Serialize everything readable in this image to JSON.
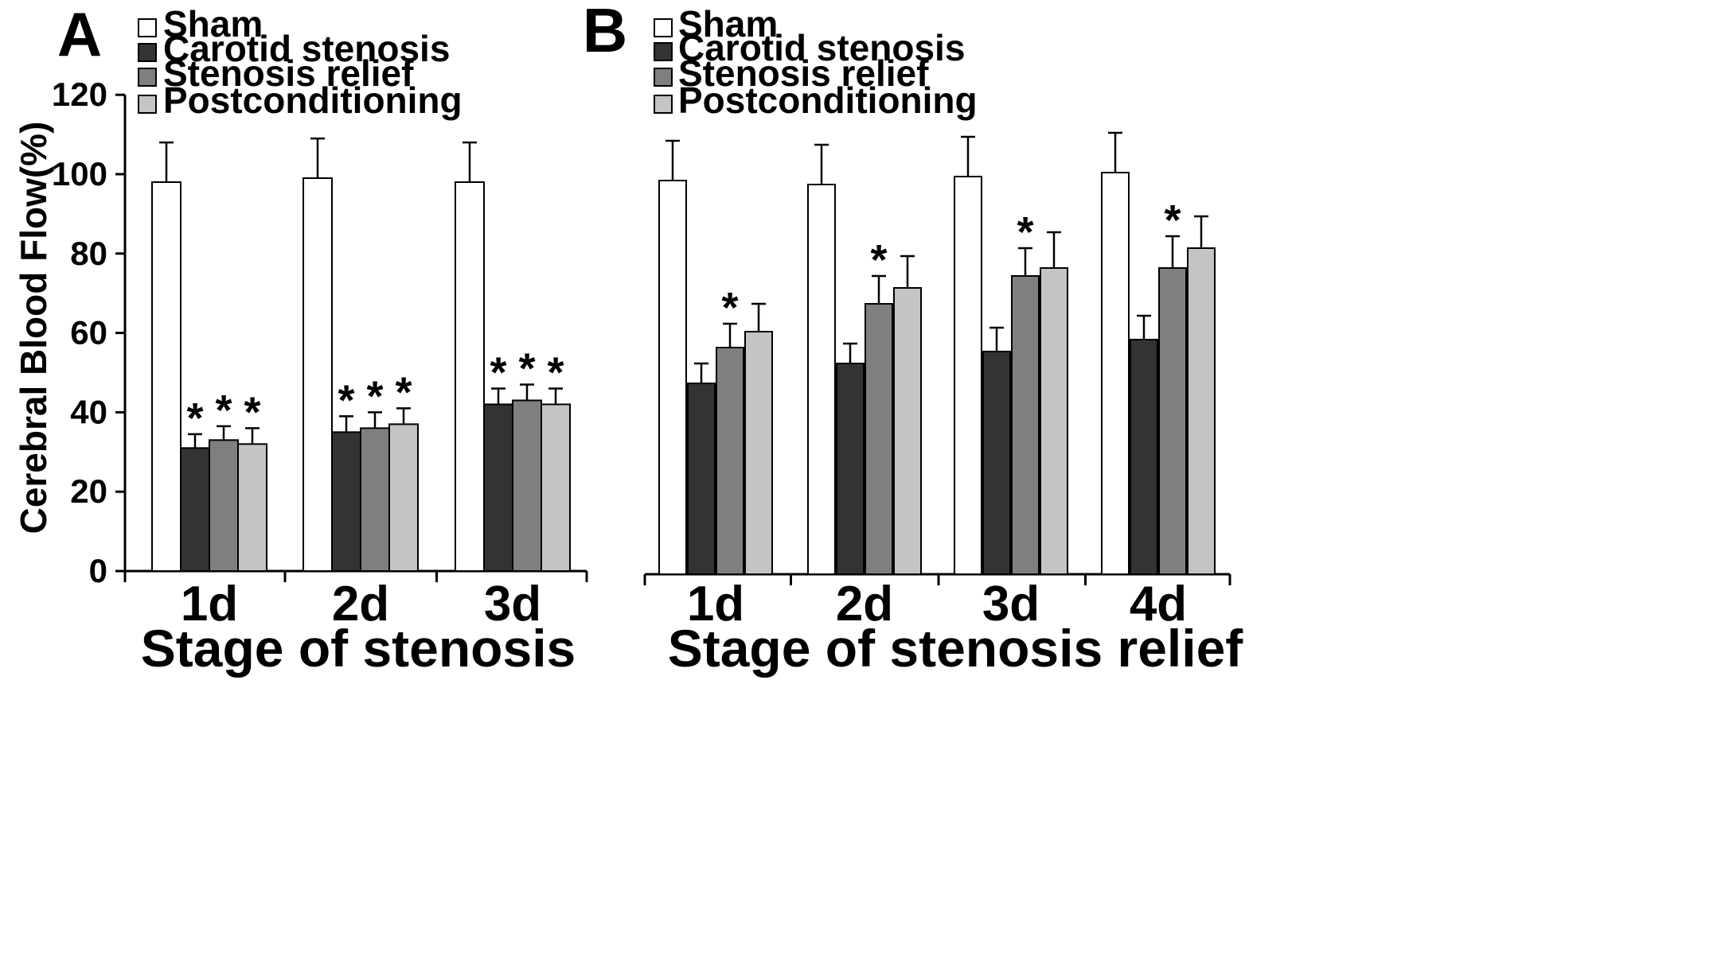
{
  "chart_data": [
    {
      "panel": "A",
      "type": "bar",
      "categories": [
        "1d",
        "2d",
        "3d"
      ],
      "series": [
        {
          "name": "Sham",
          "color": "#ffffff",
          "values": [
            98,
            99,
            98
          ],
          "errors": [
            10,
            10,
            10
          ],
          "significant": [
            false,
            false,
            false
          ]
        },
        {
          "name": "Carotid stenosis",
          "color": "#333333",
          "values": [
            31,
            35,
            42
          ],
          "errors": [
            3.5,
            4,
            4
          ],
          "significant": [
            true,
            true,
            true
          ]
        },
        {
          "name": "Stenosis relief",
          "color": "#7f7f7f",
          "values": [
            33,
            36,
            43
          ],
          "errors": [
            3.5,
            4,
            4
          ],
          "significant": [
            true,
            true,
            true
          ]
        },
        {
          "name": "Postconditioning",
          "color": "#c4c4c4",
          "values": [
            32,
            37,
            42
          ],
          "errors": [
            4,
            4,
            4
          ],
          "significant": [
            true,
            true,
            true
          ]
        }
      ],
      "xlabel": "Stage of stenosis",
      "ylabel": "Cerebral Blood Flow(%)",
      "ylim": [
        0,
        120
      ],
      "yticks": [
        "0",
        "20",
        "40",
        "60",
        "80",
        "100",
        "120"
      ],
      "marker": "*",
      "legend_position": "top-left"
    },
    {
      "panel": "B",
      "type": "bar",
      "categories": [
        "1d",
        "2d",
        "3d",
        "4d"
      ],
      "series": [
        {
          "name": "Sham",
          "color": "#ffffff",
          "values": [
            99,
            98,
            100,
            101
          ],
          "errors": [
            10,
            10,
            10,
            10
          ],
          "significant": [
            false,
            false,
            false,
            false
          ]
        },
        {
          "name": "Carotid stenosis",
          "color": "#333333",
          "values": [
            48,
            53,
            56,
            59
          ],
          "errors": [
            5,
            5,
            6,
            6
          ],
          "significant": [
            false,
            false,
            false,
            false
          ]
        },
        {
          "name": "Stenosis relief",
          "color": "#7f7f7f",
          "values": [
            57,
            68,
            75,
            77
          ],
          "errors": [
            6,
            7,
            7,
            8
          ],
          "significant": [
            true,
            true,
            true,
            true
          ]
        },
        {
          "name": "Postconditioning",
          "color": "#c4c4c4",
          "values": [
            61,
            72,
            77,
            82
          ],
          "errors": [
            7,
            8,
            9,
            8
          ],
          "significant": [
            false,
            false,
            false,
            false
          ]
        }
      ],
      "xlabel": "Stage of stenosis relief",
      "ylabel": "",
      "ylim": [
        0,
        120
      ],
      "yticks": [],
      "marker": "*",
      "legend_position": "top-left"
    }
  ]
}
